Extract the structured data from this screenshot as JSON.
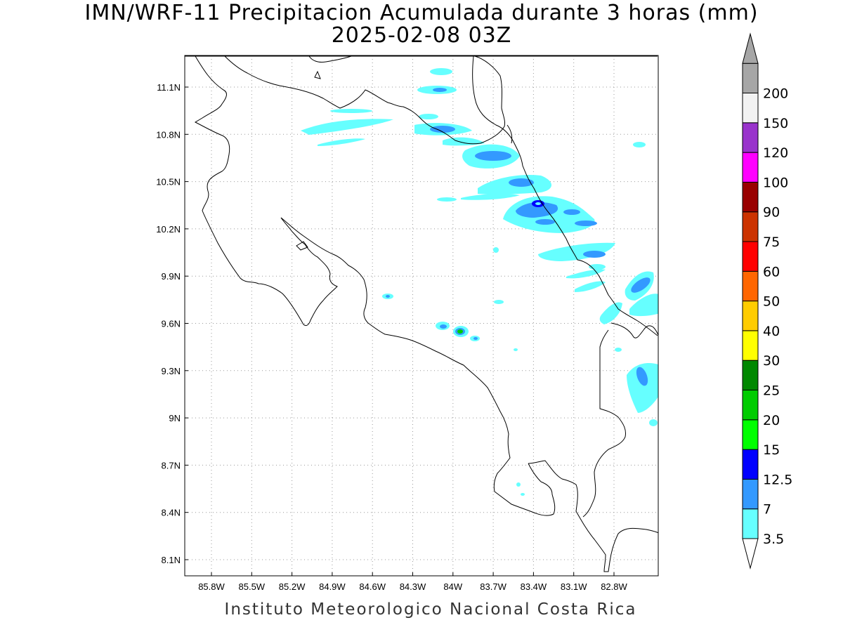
{
  "title_line1": "IMN/WRF-11 Precipitacion Acumulada durante 3 horas (mm)",
  "title_line2": "2025-02-08 03Z",
  "credit": "Instituto Meteorologico Nacional Costa Rica",
  "lon_ticks": [
    "85.8W",
    "85.5W",
    "85.2W",
    "84.9W",
    "84.6W",
    "84.3W",
    "84W",
    "83.7W",
    "83.4W",
    "83.1W",
    "82.8W"
  ],
  "lat_ticks": [
    "11.1N",
    "10.8N",
    "10.5N",
    "10.2N",
    "9.9N",
    "9.6N",
    "9.3N",
    "9N",
    "8.7N",
    "8.4N",
    "8.1N"
  ],
  "colorbar": {
    "levels": [
      "3.5",
      "7",
      "12.5",
      "15",
      "20",
      "25",
      "30",
      "40",
      "50",
      "60",
      "75",
      "90",
      "100",
      "120",
      "150",
      "200"
    ],
    "colors": [
      "#66ffff",
      "#3399ff",
      "#0000ff",
      "#00ff00",
      "#00cc00",
      "#008800",
      "#ffff00",
      "#ffcc00",
      "#ff6600",
      "#ff0000",
      "#cc3300",
      "#990000",
      "#ff00ff",
      "#9933cc",
      "#f2f2f2",
      "#a6a6a6"
    ],
    "under_color": "#ffffff",
    "over_color": "#a6a6a6"
  }
}
